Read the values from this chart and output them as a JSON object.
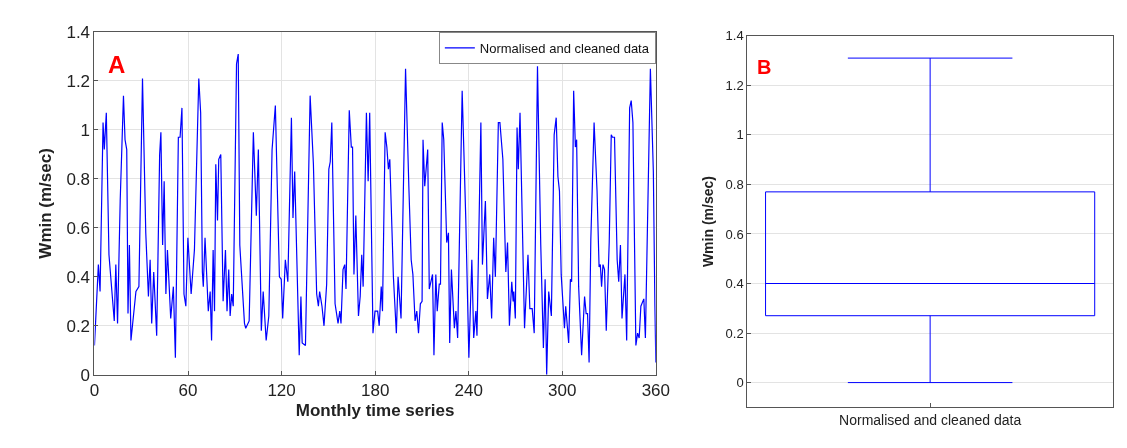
{
  "chart_data": [
    {
      "type": "line",
      "xlabel": "Monthly time series",
      "ylabel": "Wmin (m/sec)",
      "annotations": [
        "A"
      ],
      "x": [
        0,
        2.5,
        3.6,
        5.5,
        6.3,
        7.6,
        9.3,
        12.7,
        13.7,
        14.8,
        16.5,
        18.6,
        19.6,
        20.7,
        21.5,
        22.4,
        23.4,
        26.6,
        28.5,
        30.8,
        32.9,
        34.6,
        35.7,
        36.7,
        38,
        39.9,
        41.8,
        42.6,
        43.7,
        44.7,
        45.8,
        46.8,
        48.9,
        50.6,
        51.9,
        53.8,
        54.9,
        56.1,
        57.4,
        58.6,
        59.9,
        62,
        64.1,
        66.9,
        68.1,
        69.2,
        69.8,
        70.9,
        73,
        74.2,
        75.1,
        76.1,
        77,
        77.8,
        78.9,
        79.7,
        81,
        82.5,
        84,
        85,
        86.1,
        87,
        88,
        89,
        91.1,
        92.2,
        93.2,
        96.2,
        97,
        99.2,
        101.9,
        103.8,
        105.1,
        107,
        108.2,
        110.1,
        111.8,
        113.9,
        116,
        118.6,
        119.8,
        120.7,
        122.4,
        124,
        126.3,
        127.3,
        128.4,
        131.3,
        132.4,
        133.2,
        135.3,
        138.3,
        140.4,
        142.5,
        143.6,
        144.4,
        145.9,
        147.2,
        148.9,
        150.3,
        151.2,
        152.2,
        154.3,
        156.2,
        157.3,
        158.1,
        159.4,
        160.5,
        161.3,
        163.4,
        164.7,
        165.5,
        166.4,
        167.6,
        169.3,
        170.4,
        171.4,
        172.3,
        174.4,
        175.5,
        176.5,
        178.6,
        179.9,
        181.6,
        182.6,
        183.9,
        184.7,
        186.4,
        187.5,
        188.5,
        189.4,
        191.7,
        193.6,
        194.7,
        196.6,
        199.5,
        201.6,
        203.1,
        204.2,
        205.6,
        206.7,
        207.8,
        209,
        210.1,
        210.7,
        211.8,
        213.7,
        214.7,
        216.8,
        217.7,
        218.9,
        219.8,
        221.1,
        221.9,
        223,
        224,
        225.9,
        227,
        227.8,
        228.9,
        230.8,
        231.8,
        232.9,
        235.8,
        238.1,
        240.1,
        242,
        243.2,
        244.6,
        245.3,
        247.8,
        248.8,
        250.7,
        252,
        253.5,
        254.7,
        256,
        257.1,
        259,
        260,
        261.9,
        263.8,
        264.9,
        266.1,
        267.6,
        268.5,
        268.9,
        269.9,
        271,
        271.8,
        272.9,
        275.8,
        278,
        279.2,
        280.7,
        282,
        284.1,
        286.2,
        287.9,
        289,
        290,
        291.3,
        293,
        294.8,
        296.1,
        297.2,
        298.2,
        299.3,
        301.4,
        302.2,
        304.1,
        305.2,
        306,
        307.3,
        308.4,
        309.2,
        310.5,
        312.4,
        314.3,
        315.3,
        316.2,
        317.2,
        318.3,
        320.4,
        322.3,
        323.6,
        324.4,
        325.2,
        326.1,
        327.1,
        328.2,
        330.1,
        331.4,
        332.2,
        333.5,
        335.2,
        336.2,
        337.3,
        338.3,
        340.2,
        341.3,
        343.2,
        344.2,
        345.3,
        347.2,
        348.3,
        349.3,
        350.4,
        352.3,
        353.3,
        356.5,
        358.4,
        359.4,
        360
      ],
      "series": [
        {
          "name": "Normalised and cleaned data",
          "color": "#0000ff",
          "values": [
            0.12,
            0.45,
            0.34,
            1.03,
            0.92,
            1.07,
            0.49,
            0.22,
            0.45,
            0.21,
            0.71,
            1.14,
            0.96,
            0.92,
            0.25,
            0.53,
            0.14,
            0.34,
            0.36,
            1.21,
            0.58,
            0.32,
            0.47,
            0.21,
            0.42,
            0.16,
            0.9,
            0.99,
            0.53,
            0.79,
            0.33,
            0.51,
            0.23,
            0.36,
            0.07,
            0.97,
            0.97,
            1.09,
            0.33,
            0.28,
            0.56,
            0.33,
            0.51,
            1.21,
            1.07,
            0.42,
            0.36,
            0.56,
            0.26,
            0.34,
            0.14,
            0.51,
            0.26,
            0.86,
            0.63,
            0.88,
            0.9,
            0.3,
            0.51,
            0.26,
            0.43,
            0.24,
            0.33,
            0.28,
            1.27,
            1.31,
            0.53,
            0.21,
            0.19,
            0.22,
            0.99,
            0.65,
            0.92,
            0.18,
            0.34,
            0.14,
            0.24,
            0.92,
            1.1,
            0.4,
            0.39,
            0.23,
            0.47,
            0.38,
            1.05,
            0.64,
            0.83,
            0.08,
            0.32,
            0.13,
            0.12,
            1.14,
            0.86,
            0.33,
            0.28,
            0.34,
            0.28,
            0.2,
            0.37,
            0.84,
            0.87,
            1.03,
            0.29,
            0.21,
            0.26,
            0.21,
            0.43,
            0.45,
            0.35,
            1.08,
            0.93,
            0.93,
            0.41,
            0.65,
            0.24,
            0.32,
            0.49,
            0.36,
            1.07,
            0.79,
            1.07,
            0.17,
            0.26,
            0.26,
            0.2,
            0.36,
            0.26,
            0.99,
            0.93,
            0.84,
            0.88,
            0.4,
            0.17,
            0.4,
            0.23,
            1.25,
            0.77,
            0.47,
            0.41,
            0.22,
            0.26,
            0.17,
            0.29,
            0.3,
            0.96,
            0.77,
            0.92,
            0.35,
            0.41,
            0.08,
            0.41,
            0.26,
            0.37,
            0.37,
            1.03,
            0.96,
            0.54,
            0.58,
            0.13,
            0.43,
            0.19,
            0.26,
            0.15,
            1.16,
            0.64,
            0.07,
            0.47,
            0.15,
            0.26,
            0.16,
            1.03,
            0.45,
            0.71,
            0.31,
            0.41,
            0.23,
            0.56,
            0.4,
            1.03,
            1.03,
            0.88,
            0.42,
            0.54,
            0.2,
            0.38,
            0.3,
            0.34,
            0.23,
            1.01,
            0.84,
            1.07,
            0.19,
            0.49,
            0.27,
            0.27,
            0.17,
            1.26,
            0.53,
            0.11,
            0.39,
            0.0,
            0.34,
            0.24,
            0.98,
            1.05,
            0.81,
            0.75,
            0.41,
            0.19,
            0.28,
            0.13,
            0.39,
            0.38,
            1.16,
            0.93,
            0.96,
            0.36,
            0.08,
            0.32,
            0.25,
            0.25,
            0.05,
            0.55,
            1.03,
            0.75,
            0.44,
            0.45,
            0.36,
            0.45,
            0.43,
            0.18,
            0.54,
            0.98,
            0.97,
            0.97,
            0.47,
            0.38,
            0.53,
            0.23,
            0.41,
            0.14,
            1.09,
            1.12,
            1.03,
            0.12,
            0.17,
            0.15,
            0.28,
            0.31,
            0.15,
            1.25,
            0.83,
            0.28,
            0.05
          ]
        }
      ],
      "xlim": [
        0,
        360
      ],
      "xticks": [
        0,
        60,
        120,
        180,
        240,
        300,
        360
      ],
      "ylim": [
        0,
        1.4
      ],
      "yticks": [
        0,
        0.2,
        0.4,
        0.6,
        0.8,
        1,
        1.2,
        1.4
      ],
      "grid": true,
      "legend": "top right",
      "line_style": "solid",
      "marker": "none"
    },
    {
      "type": "box",
      "ylabel": "Wmin (m/sec)",
      "annotations": [
        "B"
      ],
      "categories": [
        "Normalised and cleaned data"
      ],
      "series": [
        {
          "color": "#0000ff",
          "boxes": [
            {
              "low": 0,
              "q1": 0.27,
              "median": 0.4,
              "q3": 0.77,
              "high": 1.31
            }
          ]
        }
      ],
      "ylim": [
        -0.1,
        1.4
      ],
      "yticks": [
        0,
        0.2,
        0.4,
        0.6,
        0.8,
        1,
        1.2,
        1.4
      ],
      "grid": "y",
      "legend": false
    }
  ]
}
